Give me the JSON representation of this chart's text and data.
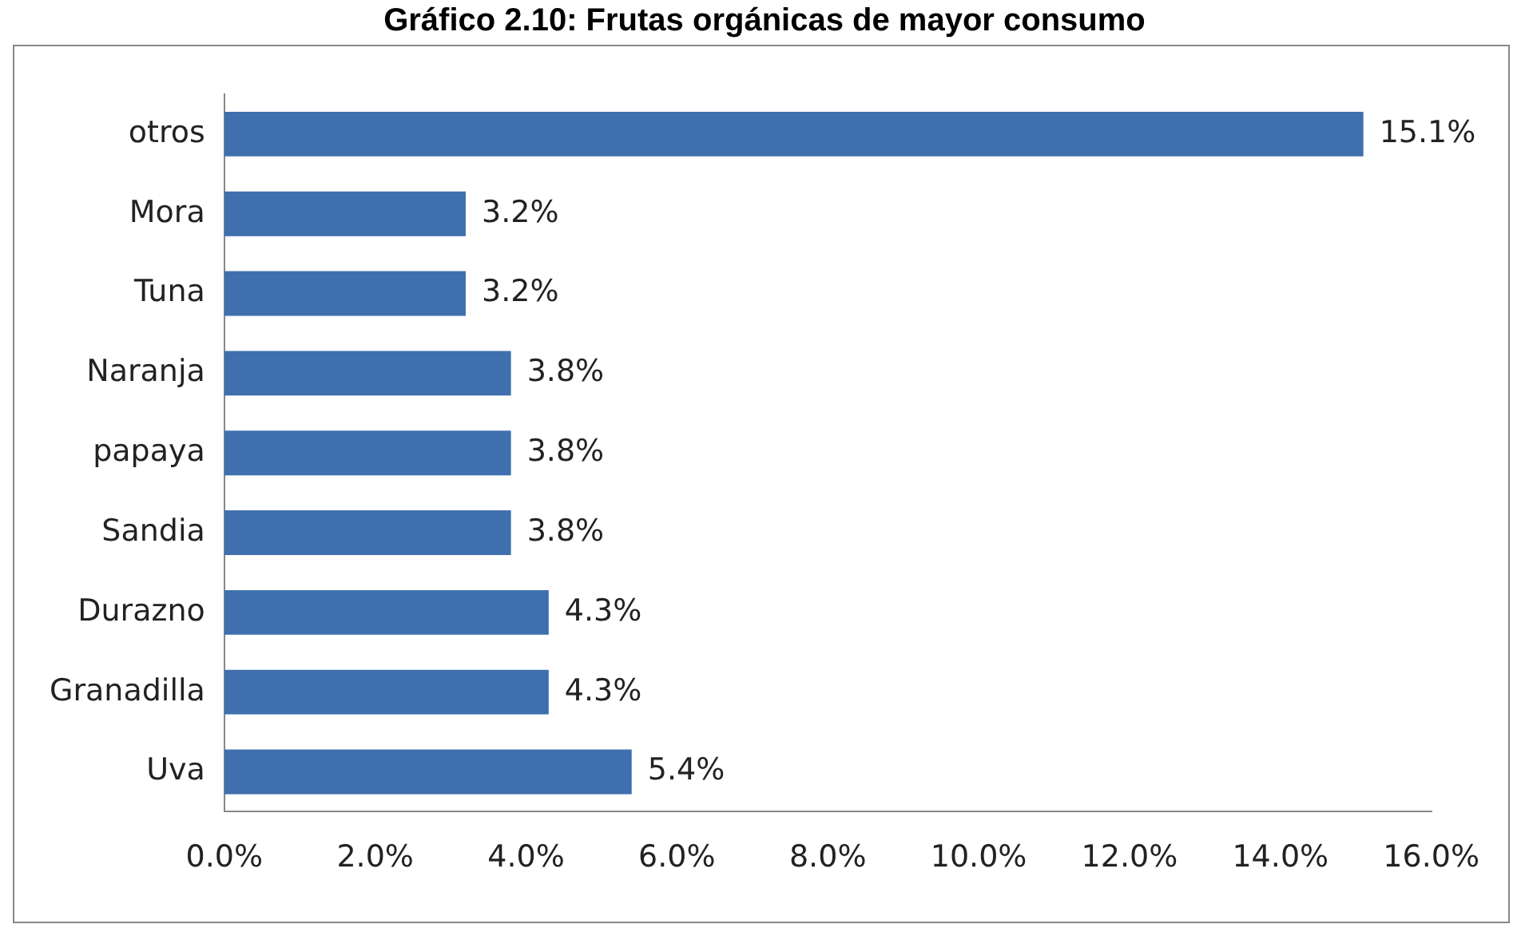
{
  "chart_data": {
    "type": "bar",
    "orientation": "horizontal",
    "title": "Gráfico 2.10: Frutas orgánicas de mayor consumo",
    "categories": [
      "otros",
      "Mora",
      "Tuna",
      "Naranja",
      "papaya",
      "Sandia",
      "Durazno",
      "Granadilla",
      "Uva"
    ],
    "values": [
      15.1,
      3.2,
      3.2,
      3.8,
      3.8,
      3.8,
      4.3,
      4.3,
      5.4
    ],
    "value_labels": [
      "15.1%",
      "3.2%",
      "3.2%",
      "3.8%",
      "3.8%",
      "3.8%",
      "4.3%",
      "4.3%",
      "5.4%"
    ],
    "color": "#3f6fae",
    "xlim": [
      0,
      16
    ],
    "xticks": [
      {
        "value": 0,
        "label": "0.0%"
      },
      {
        "value": 2,
        "label": "2.0%"
      },
      {
        "value": 4,
        "label": "4.0%"
      },
      {
        "value": 6,
        "label": "6.0%"
      },
      {
        "value": 8,
        "label": "8.0%"
      },
      {
        "value": 10,
        "label": "10.0%"
      },
      {
        "value": 12,
        "label": "12.0%"
      },
      {
        "value": 14,
        "label": "14.0%"
      },
      {
        "value": 16,
        "label": "16.0%"
      }
    ],
    "grid": false,
    "legend": false
  }
}
